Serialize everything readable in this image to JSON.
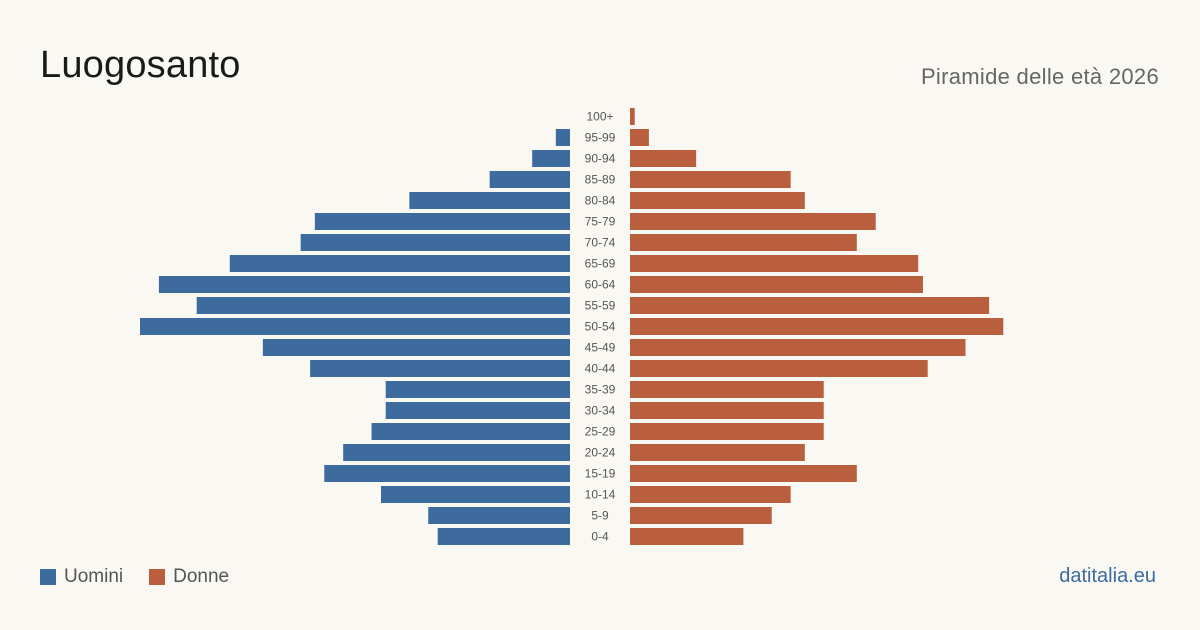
{
  "header": {
    "title": "Luogosanto",
    "subtitle": "Piramide delle età 2026"
  },
  "legend": {
    "men_label": "Uomini",
    "women_label": "Donne"
  },
  "brand": "datitalia.eu",
  "colors": {
    "men": "#3d6b9e",
    "women": "#b95f3d",
    "background": "#faf8f3"
  },
  "chart_data": {
    "type": "bar",
    "orientation": "horizontal-pyramid",
    "categories": [
      "100+",
      "95-99",
      "90-94",
      "85-89",
      "80-84",
      "75-79",
      "70-74",
      "65-69",
      "60-64",
      "55-59",
      "50-54",
      "45-49",
      "40-44",
      "35-39",
      "30-34",
      "25-29",
      "20-24",
      "15-19",
      "10-14",
      "5-9",
      "0-4"
    ],
    "series": [
      {
        "name": "Uomini",
        "values": [
          0,
          3,
          8,
          17,
          34,
          54,
          57,
          72,
          87,
          79,
          91,
          65,
          55,
          39,
          39,
          42,
          48,
          52,
          40,
          30,
          28
        ]
      },
      {
        "name": "Donne",
        "values": [
          1,
          4,
          14,
          34,
          37,
          52,
          48,
          61,
          62,
          76,
          79,
          71,
          63,
          41,
          41,
          41,
          37,
          48,
          34,
          30,
          24
        ]
      }
    ],
    "scale_max": 91
  }
}
